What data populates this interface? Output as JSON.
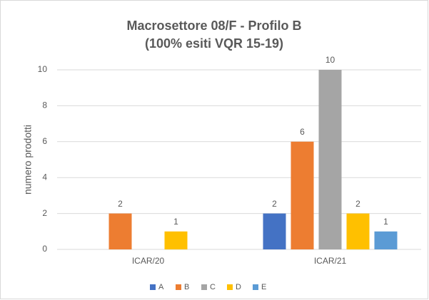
{
  "chart_data": {
    "type": "bar",
    "title_lines": [
      "Macrosettore 08/F - Profilo B",
      "(100% esiti VQR 15-19)"
    ],
    "y_label": "numero prodotti",
    "categories": [
      "ICAR/20",
      "ICAR/21"
    ],
    "series": [
      {
        "name": "A",
        "color": "#4472c4",
        "values": [
          null,
          2
        ]
      },
      {
        "name": "B",
        "color": "#ed7d31",
        "values": [
          2,
          6
        ]
      },
      {
        "name": "C",
        "color": "#a5a5a5",
        "values": [
          null,
          10
        ]
      },
      {
        "name": "D",
        "color": "#ffc000",
        "values": [
          1,
          2
        ]
      },
      {
        "name": "E",
        "color": "#5b9bd5",
        "values": [
          null,
          1
        ]
      }
    ],
    "ylim": [
      0,
      10
    ],
    "yticks": [
      0,
      2,
      4,
      6,
      8,
      10
    ],
    "grid": true,
    "legend": "bottom"
  }
}
